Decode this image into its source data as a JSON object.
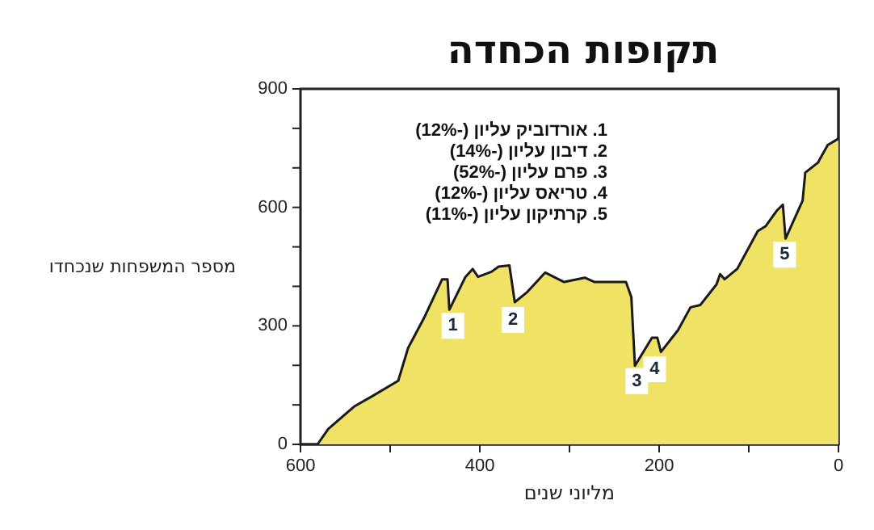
{
  "chart_data": {
    "type": "area",
    "title": "תקופות הכחדה",
    "xlabel": "מליוני שנים",
    "ylabel": "מספר המשפחות שנכחדו",
    "x": [
      581,
      569,
      540,
      520,
      491,
      480,
      462,
      442,
      436,
      434,
      416,
      408,
      402,
      387,
      379,
      367,
      361,
      347,
      327,
      306,
      283,
      272,
      237,
      231,
      227,
      208,
      202,
      198,
      179,
      165,
      154,
      136,
      132,
      127,
      113,
      90,
      81,
      69,
      62,
      59,
      40,
      37,
      23,
      12,
      0
    ],
    "series": [
      {
        "color": "#f0e264",
        "values": [
          0,
          39,
          96,
          122,
          161,
          244,
          321,
          418,
          418,
          341,
          424,
          444,
          424,
          437,
          450,
          453,
          360,
          386,
          435,
          411,
          422,
          411,
          411,
          373,
          199,
          270,
          270,
          234,
          289,
          347,
          353,
          405,
          431,
          418,
          444,
          540,
          553,
          591,
          607,
          521,
          617,
          688,
          713,
          758,
          774
        ]
      }
    ],
    "xlim": [
      600,
      0
    ],
    "xticks": [
      600,
      {
        "value": 500,
        "label": null
      },
      400,
      {
        "value": 300,
        "label": null
      },
      200,
      {
        "value": 100,
        "label": null
      },
      0
    ],
    "ylim": [
      0,
      900
    ],
    "yticks": [
      0,
      {
        "value": 100,
        "label": null
      },
      {
        "value": 200,
        "label": null
      },
      300,
      {
        "value": 400,
        "label": null
      },
      {
        "value": 500,
        "label": null
      },
      600,
      {
        "value": 700,
        "label": null
      },
      {
        "value": 800,
        "label": null
      },
      900
    ],
    "annotations": [
      "1. אורדוביק עליון (-12%)",
      "2. דיבון עליון (-14%)",
      "3. פרם עליון (-52%)",
      "4. טריאס עליון (-12%)",
      "5. קרתיקון עליון (-11%)",
      {
        "text": "1",
        "x": 430,
        "y": 300
      },
      {
        "text": "2",
        "x": 363,
        "y": 315
      },
      {
        "text": "3",
        "x": 225,
        "y": 160
      },
      {
        "text": "4",
        "x": 205,
        "y": 190
      },
      {
        "text": "5",
        "x": 60,
        "y": 480
      }
    ],
    "grid": false,
    "marker": "none",
    "line_style": "solid"
  }
}
